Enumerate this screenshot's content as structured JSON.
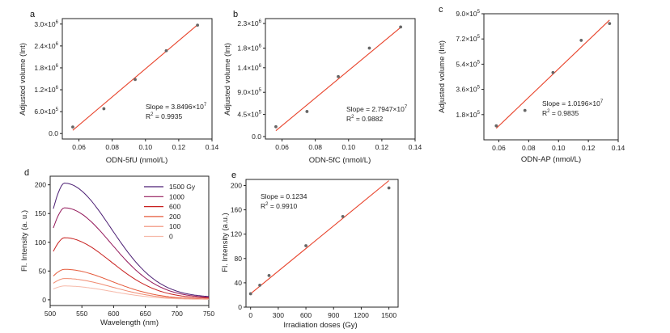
{
  "chart_data": [
    {
      "id": "a",
      "type": "scatter",
      "panel": "a",
      "xlabel": "ODN-5fU (nmol/L)",
      "ylabel": "Adjusted volume (Int)",
      "xlim": [
        0.05,
        0.14
      ],
      "ylim": [
        -150000,
        3150000
      ],
      "xticks": [
        0.06,
        0.08,
        0.1,
        0.12,
        0.14
      ],
      "xticklabels": [
        "0.06",
        "0.08",
        "0.10",
        "0.12",
        "0.14"
      ],
      "yticks": [
        0,
        600000,
        1200000,
        1800000,
        2400000,
        3000000
      ],
      "yticklabels": [
        [
          "0.0",
          ""
        ],
        [
          "6.0×10",
          "5"
        ],
        [
          "1.2×10",
          "6"
        ],
        [
          "1.8×10",
          "6"
        ],
        [
          "2.4×10",
          "6"
        ],
        [
          "3.0×10",
          "6"
        ]
      ],
      "x": [
        0.0563,
        0.075,
        0.0938,
        0.1125,
        0.1313
      ],
      "y": [
        180000,
        680000,
        1480000,
        2270000,
        2970000
      ],
      "fit": {
        "x": [
          0.0563,
          0.1313
        ],
        "y": [
          90000,
          2980000
        ]
      },
      "annotation_lines": [
        [
          "Slope = 3.8496×10",
          "7"
        ],
        [
          "R",
          "2",
          " = 0.9935"
        ]
      ]
    },
    {
      "id": "b",
      "type": "scatter",
      "panel": "b",
      "xlabel": "ODN-5fC (nmol/L)",
      "ylabel": "Adjusted volume (Int)",
      "xlim": [
        0.05,
        0.14
      ],
      "ylim": [
        -50000,
        2400000
      ],
      "xticks": [
        0.06,
        0.08,
        0.1,
        0.12,
        0.14
      ],
      "xticklabels": [
        "0.06",
        "0.08",
        "0.10",
        "0.12",
        "0.14"
      ],
      "yticks": [
        0,
        450000,
        900000,
        1400000,
        1800000,
        2300000
      ],
      "yticklabels": [
        [
          "0.0",
          ""
        ],
        [
          "4.5×10",
          "5"
        ],
        [
          "9.0×10",
          "5"
        ],
        [
          "1.4×10",
          "6"
        ],
        [
          "1.8×10",
          "6"
        ],
        [
          "2.3×10",
          "6"
        ]
      ],
      "x": [
        0.0563,
        0.075,
        0.0938,
        0.1125,
        0.1313
      ],
      "y": [
        200000,
        510000,
        1220000,
        1800000,
        2230000
      ],
      "fit": {
        "x": [
          0.0563,
          0.1313
        ],
        "y": [
          120000,
          2220000
        ]
      },
      "annotation_lines": [
        [
          "Slope = 2.7947×10",
          "7"
        ],
        [
          "R",
          "2",
          " = 0.9882"
        ]
      ]
    },
    {
      "id": "c",
      "type": "scatter",
      "panel": "c",
      "xlabel": "ODN-AP (nmol/L)",
      "ylabel": "Adjusted volume (Int)",
      "xlim": [
        0.05,
        0.14
      ],
      "ylim": [
        0,
        900000
      ],
      "xticks": [
        0.06,
        0.08,
        0.1,
        0.12,
        0.14
      ],
      "xticklabels": [
        "0.06",
        "0.08",
        "0.10",
        "0.12",
        "0.14"
      ],
      "yticks": [
        180000,
        360000,
        540000,
        720000,
        900000
      ],
      "yticklabels": [
        [
          "1.8×10",
          "5"
        ],
        [
          "3.6×10",
          "5"
        ],
        [
          "5.4×10",
          "5"
        ],
        [
          "7.2×10",
          "5"
        ],
        [
          "9.0×10",
          "5"
        ]
      ],
      "x": [
        0.0583,
        0.0775,
        0.0963,
        0.1152,
        0.1342
      ],
      "y": [
        100000,
        210000,
        480000,
        710000,
        830000
      ],
      "fit": {
        "x": [
          0.0583,
          0.1342
        ],
        "y": [
          82000,
          855000
        ]
      },
      "annotation_lines": [
        [
          "Slope = 1.0196×10",
          "7"
        ],
        [
          "R",
          "2",
          " = 0.9835"
        ]
      ]
    },
    {
      "id": "d",
      "type": "line",
      "panel": "d",
      "xlabel": "Wavelength (nm)",
      "ylabel": "Fl. Intensity (a. u.)",
      "xlim": [
        500,
        750
      ],
      "ylim": [
        -10,
        215
      ],
      "xticks": [
        500,
        550,
        600,
        650,
        700,
        750
      ],
      "xticklabels": [
        "500",
        "550",
        "600",
        "650",
        "700",
        "750"
      ],
      "yticks": [
        0,
        50,
        100,
        150,
        200
      ],
      "yticklabels": [
        "0",
        "50",
        "100",
        "150",
        "200"
      ],
      "legend": [
        "1500 Gy",
        "1000",
        "600",
        "200",
        "100",
        "0"
      ],
      "series": [
        {
          "name": "1500 Gy",
          "color": "#4b1e73",
          "peak": 203
        },
        {
          "name": "1000",
          "color": "#93185a",
          "peak": 160
        },
        {
          "name": "600",
          "color": "#c8201f",
          "peak": 108
        },
        {
          "name": "200",
          "color": "#e55a3b",
          "peak": 53
        },
        {
          "name": "100",
          "color": "#f08a70",
          "peak": 37
        },
        {
          "name": "0",
          "color": "#f6b8a8",
          "peak": 24
        }
      ],
      "peak_wavelength": 522,
      "end_value_fraction": 0.02
    },
    {
      "id": "e",
      "type": "scatter",
      "panel": "e",
      "xlabel": "Irradiation doses (Gy)",
      "ylabel": "Fl. Intensity (a.u.)",
      "xlim": [
        -50,
        1600
      ],
      "ylim": [
        0,
        210
      ],
      "xticks": [
        0,
        300,
        600,
        900,
        1200,
        1500
      ],
      "xticklabels": [
        "0",
        "300",
        "600",
        "900",
        "1200",
        "1500"
      ],
      "yticks": [
        0,
        40,
        80,
        120,
        160,
        200
      ],
      "yticklabels": [
        "0",
        "40",
        "80",
        "120",
        "160",
        "200"
      ],
      "x": [
        0,
        100,
        200,
        600,
        1000,
        1500
      ],
      "y": [
        22,
        36,
        52,
        101,
        149,
        196
      ],
      "fit": {
        "x": [
          0,
          1500
        ],
        "y": [
          22,
          208
        ]
      },
      "annotation_lines": [
        [
          "Slope = 0.1234"
        ],
        [
          "R",
          "2",
          " = 0.9910"
        ]
      ]
    }
  ]
}
